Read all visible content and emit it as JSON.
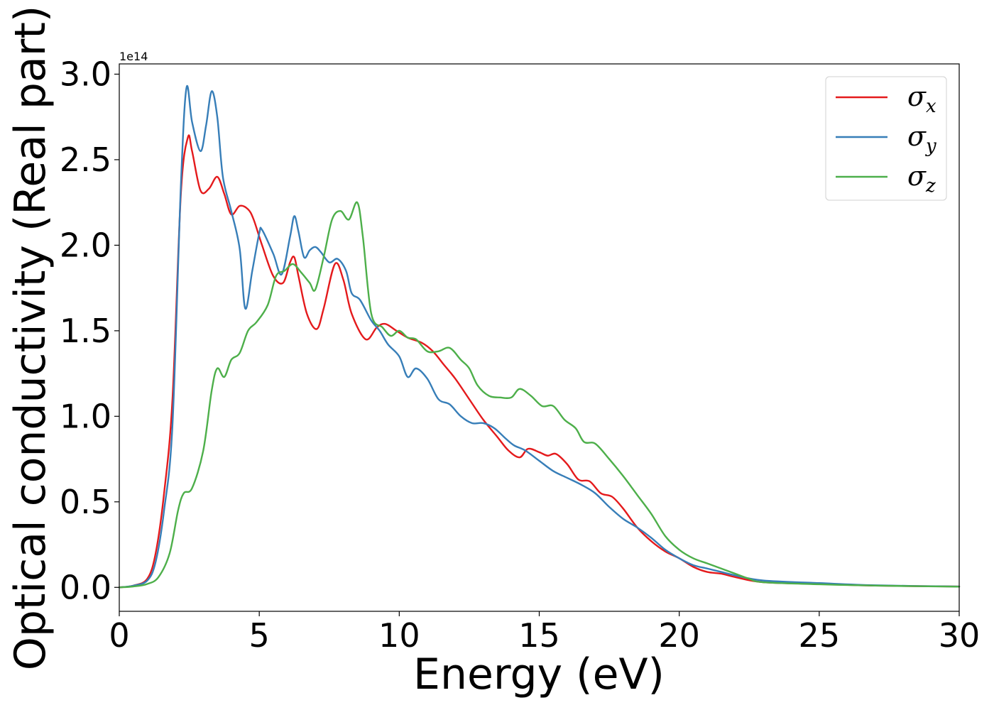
{
  "chart_data": {
    "type": "line",
    "title": "",
    "xlabel": "Energy (eV)",
    "ylabel": "Optical conductivity (Real part)",
    "y_offset_label": "1e14",
    "xlim": [
      0,
      30
    ],
    "ylim": [
      -0.14,
      3.06
    ],
    "xticks": [
      0,
      5,
      10,
      15,
      20,
      25,
      30
    ],
    "xtick_labels": [
      "0",
      "5",
      "10",
      "15",
      "20",
      "25",
      "30"
    ],
    "yticks": [
      0.0,
      0.5,
      1.0,
      1.5,
      2.0,
      2.5,
      3.0
    ],
    "ytick_labels": [
      "0.0",
      "0.5",
      "1.0",
      "1.5",
      "2.0",
      "2.5",
      "3.0"
    ],
    "grid": false,
    "legend_position": "top-right",
    "series": [
      {
        "name": "σ",
        "name_sub": "x",
        "color": "#e41a1c",
        "points": [
          [
            0,
            0
          ],
          [
            0.5,
            0.01
          ],
          [
            1.0,
            0.05
          ],
          [
            1.3,
            0.2
          ],
          [
            1.6,
            0.55
          ],
          [
            1.9,
            1.1
          ],
          [
            2.2,
            2.3
          ],
          [
            2.45,
            2.63
          ],
          [
            2.6,
            2.55
          ],
          [
            2.9,
            2.32
          ],
          [
            3.2,
            2.33
          ],
          [
            3.5,
            2.4
          ],
          [
            3.75,
            2.3
          ],
          [
            4.0,
            2.18
          ],
          [
            4.3,
            2.23
          ],
          [
            4.6,
            2.21
          ],
          [
            4.8,
            2.15
          ],
          [
            5.1,
            2.0
          ],
          [
            5.5,
            1.82
          ],
          [
            5.85,
            1.78
          ],
          [
            6.1,
            1.9
          ],
          [
            6.25,
            1.93
          ],
          [
            6.4,
            1.82
          ],
          [
            6.7,
            1.6
          ],
          [
            7.05,
            1.51
          ],
          [
            7.3,
            1.63
          ],
          [
            7.7,
            1.89
          ],
          [
            8.0,
            1.8
          ],
          [
            8.3,
            1.6
          ],
          [
            8.8,
            1.45
          ],
          [
            9.2,
            1.52
          ],
          [
            9.5,
            1.54
          ],
          [
            9.9,
            1.5
          ],
          [
            10.3,
            1.46
          ],
          [
            10.8,
            1.43
          ],
          [
            11.2,
            1.38
          ],
          [
            11.6,
            1.3
          ],
          [
            12.0,
            1.22
          ],
          [
            12.5,
            1.1
          ],
          [
            13.0,
            0.98
          ],
          [
            13.5,
            0.88
          ],
          [
            13.9,
            0.8
          ],
          [
            14.3,
            0.76
          ],
          [
            14.6,
            0.81
          ],
          [
            15.0,
            0.79
          ],
          [
            15.3,
            0.77
          ],
          [
            15.6,
            0.78
          ],
          [
            16.0,
            0.72
          ],
          [
            16.4,
            0.63
          ],
          [
            16.8,
            0.62
          ],
          [
            17.2,
            0.55
          ],
          [
            17.6,
            0.53
          ],
          [
            18.0,
            0.46
          ],
          [
            18.5,
            0.35
          ],
          [
            19.0,
            0.27
          ],
          [
            19.5,
            0.21
          ],
          [
            20.0,
            0.17
          ],
          [
            20.5,
            0.12
          ],
          [
            21.0,
            0.09
          ],
          [
            21.5,
            0.08
          ],
          [
            22.0,
            0.06
          ],
          [
            23.0,
            0.03
          ],
          [
            25.0,
            0.02
          ],
          [
            27.0,
            0.01
          ],
          [
            30.0,
            0.005
          ]
        ]
      },
      {
        "name": "σ",
        "name_sub": "y",
        "color": "#377eb8",
        "points": [
          [
            0,
            0
          ],
          [
            0.5,
            0.01
          ],
          [
            1.0,
            0.04
          ],
          [
            1.3,
            0.15
          ],
          [
            1.6,
            0.45
          ],
          [
            1.9,
            0.95
          ],
          [
            2.2,
            2.35
          ],
          [
            2.4,
            2.92
          ],
          [
            2.6,
            2.72
          ],
          [
            2.9,
            2.55
          ],
          [
            3.1,
            2.7
          ],
          [
            3.3,
            2.9
          ],
          [
            3.5,
            2.75
          ],
          [
            3.7,
            2.4
          ],
          [
            4.0,
            2.2
          ],
          [
            4.3,
            1.98
          ],
          [
            4.5,
            1.63
          ],
          [
            4.75,
            1.85
          ],
          [
            5.0,
            2.07
          ],
          [
            5.1,
            2.09
          ],
          [
            5.5,
            1.95
          ],
          [
            5.8,
            1.83
          ],
          [
            6.1,
            2.05
          ],
          [
            6.25,
            2.17
          ],
          [
            6.4,
            2.08
          ],
          [
            6.6,
            1.93
          ],
          [
            6.8,
            1.97
          ],
          [
            7.0,
            1.99
          ],
          [
            7.2,
            1.96
          ],
          [
            7.5,
            1.9
          ],
          [
            7.8,
            1.92
          ],
          [
            8.1,
            1.85
          ],
          [
            8.3,
            1.72
          ],
          [
            8.6,
            1.68
          ],
          [
            9.0,
            1.56
          ],
          [
            9.3,
            1.5
          ],
          [
            9.6,
            1.42
          ],
          [
            10.0,
            1.35
          ],
          [
            10.3,
            1.23
          ],
          [
            10.6,
            1.28
          ],
          [
            11.0,
            1.22
          ],
          [
            11.4,
            1.1
          ],
          [
            11.8,
            1.07
          ],
          [
            12.2,
            1.0
          ],
          [
            12.6,
            0.96
          ],
          [
            13.0,
            0.96
          ],
          [
            13.4,
            0.93
          ],
          [
            13.8,
            0.87
          ],
          [
            14.1,
            0.83
          ],
          [
            14.5,
            0.8
          ],
          [
            15.0,
            0.74
          ],
          [
            15.5,
            0.68
          ],
          [
            16.0,
            0.64
          ],
          [
            16.5,
            0.6
          ],
          [
            17.0,
            0.55
          ],
          [
            17.5,
            0.47
          ],
          [
            18.0,
            0.4
          ],
          [
            18.5,
            0.35
          ],
          [
            19.0,
            0.29
          ],
          [
            19.5,
            0.22
          ],
          [
            20.0,
            0.17
          ],
          [
            20.5,
            0.13
          ],
          [
            21.0,
            0.11
          ],
          [
            21.5,
            0.09
          ],
          [
            22.0,
            0.07
          ],
          [
            23.0,
            0.04
          ],
          [
            25.0,
            0.025
          ],
          [
            27.0,
            0.012
          ],
          [
            30.0,
            0.005
          ]
        ]
      },
      {
        "name": "σ",
        "name_sub": "z",
        "color": "#4daf4a",
        "points": [
          [
            0,
            0
          ],
          [
            0.5,
            0.005
          ],
          [
            1.0,
            0.02
          ],
          [
            1.4,
            0.06
          ],
          [
            1.8,
            0.2
          ],
          [
            2.1,
            0.45
          ],
          [
            2.3,
            0.55
          ],
          [
            2.6,
            0.58
          ],
          [
            3.0,
            0.8
          ],
          [
            3.3,
            1.15
          ],
          [
            3.5,
            1.28
          ],
          [
            3.75,
            1.23
          ],
          [
            4.0,
            1.33
          ],
          [
            4.3,
            1.37
          ],
          [
            4.6,
            1.5
          ],
          [
            4.9,
            1.55
          ],
          [
            5.3,
            1.65
          ],
          [
            5.6,
            1.82
          ],
          [
            5.9,
            1.85
          ],
          [
            6.2,
            1.89
          ],
          [
            6.5,
            1.84
          ],
          [
            6.8,
            1.78
          ],
          [
            7.0,
            1.74
          ],
          [
            7.3,
            1.93
          ],
          [
            7.6,
            2.15
          ],
          [
            7.9,
            2.2
          ],
          [
            8.2,
            2.15
          ],
          [
            8.5,
            2.25
          ],
          [
            8.7,
            2.05
          ],
          [
            9.0,
            1.6
          ],
          [
            9.4,
            1.52
          ],
          [
            9.7,
            1.47
          ],
          [
            10.0,
            1.5
          ],
          [
            10.3,
            1.46
          ],
          [
            10.6,
            1.45
          ],
          [
            11.0,
            1.38
          ],
          [
            11.4,
            1.38
          ],
          [
            11.8,
            1.4
          ],
          [
            12.2,
            1.33
          ],
          [
            12.5,
            1.28
          ],
          [
            12.8,
            1.18
          ],
          [
            13.2,
            1.12
          ],
          [
            13.6,
            1.11
          ],
          [
            14.0,
            1.11
          ],
          [
            14.3,
            1.16
          ],
          [
            14.7,
            1.12
          ],
          [
            15.1,
            1.06
          ],
          [
            15.5,
            1.06
          ],
          [
            15.9,
            0.98
          ],
          [
            16.3,
            0.93
          ],
          [
            16.6,
            0.85
          ],
          [
            17.0,
            0.84
          ],
          [
            17.5,
            0.75
          ],
          [
            18.0,
            0.65
          ],
          [
            18.5,
            0.54
          ],
          [
            19.0,
            0.43
          ],
          [
            19.5,
            0.3
          ],
          [
            20.0,
            0.22
          ],
          [
            20.5,
            0.17
          ],
          [
            21.0,
            0.14
          ],
          [
            21.5,
            0.11
          ],
          [
            22.0,
            0.08
          ],
          [
            22.5,
            0.05
          ],
          [
            23.0,
            0.03
          ],
          [
            25.0,
            0.018
          ],
          [
            27.0,
            0.01
          ],
          [
            30.0,
            0.004
          ]
        ]
      }
    ]
  }
}
